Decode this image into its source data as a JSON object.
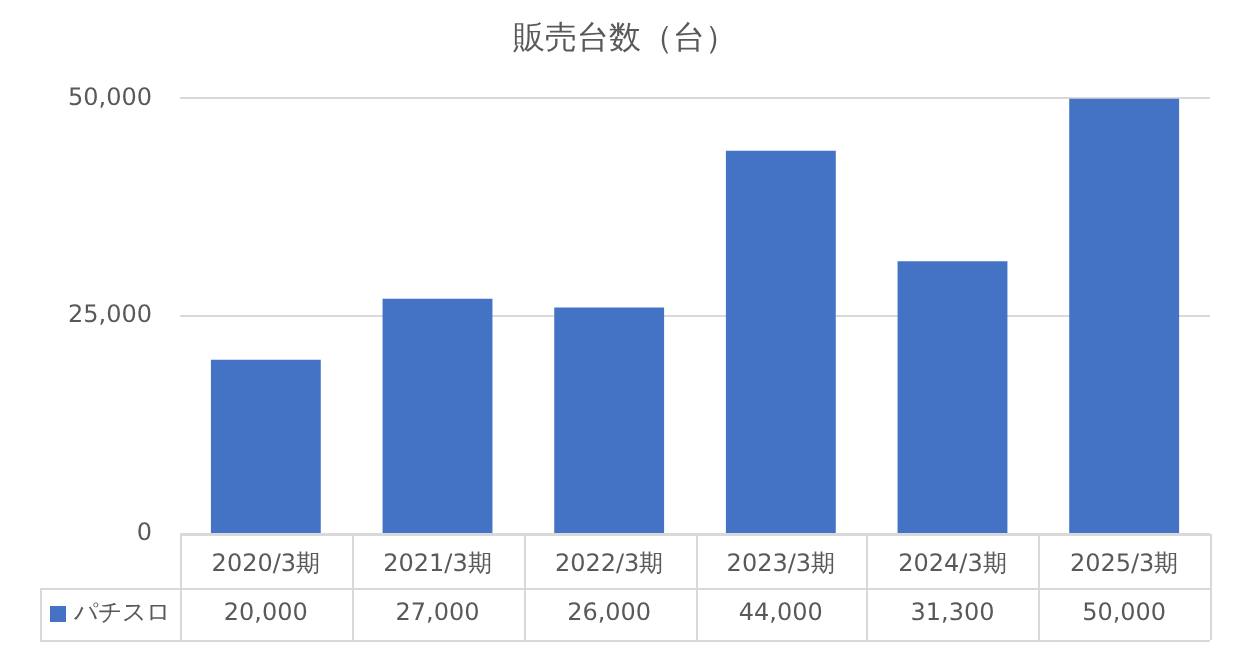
{
  "chart_data": {
    "type": "bar",
    "title": "販売台数（台）",
    "categories": [
      "2020/3期",
      "2021/3期",
      "2022/3期",
      "2023/3期",
      "2024/3期",
      "2025/3期"
    ],
    "series": [
      {
        "name": "パチスロ",
        "color": "#4472c4",
        "values": [
          20000,
          27000,
          26000,
          44000,
          31300,
          50000
        ],
        "value_labels": [
          "20,000",
          "27,000",
          "26,000",
          "44,000",
          "31,300",
          "50,000"
        ]
      }
    ],
    "ylim": [
      0,
      50000
    ],
    "yticks": [
      {
        "value": 0,
        "label": "0"
      },
      {
        "value": 25000,
        "label": "25,000"
      },
      {
        "value": 50000,
        "label": "50,000"
      }
    ],
    "grid": "y",
    "legend": "bottom"
  }
}
